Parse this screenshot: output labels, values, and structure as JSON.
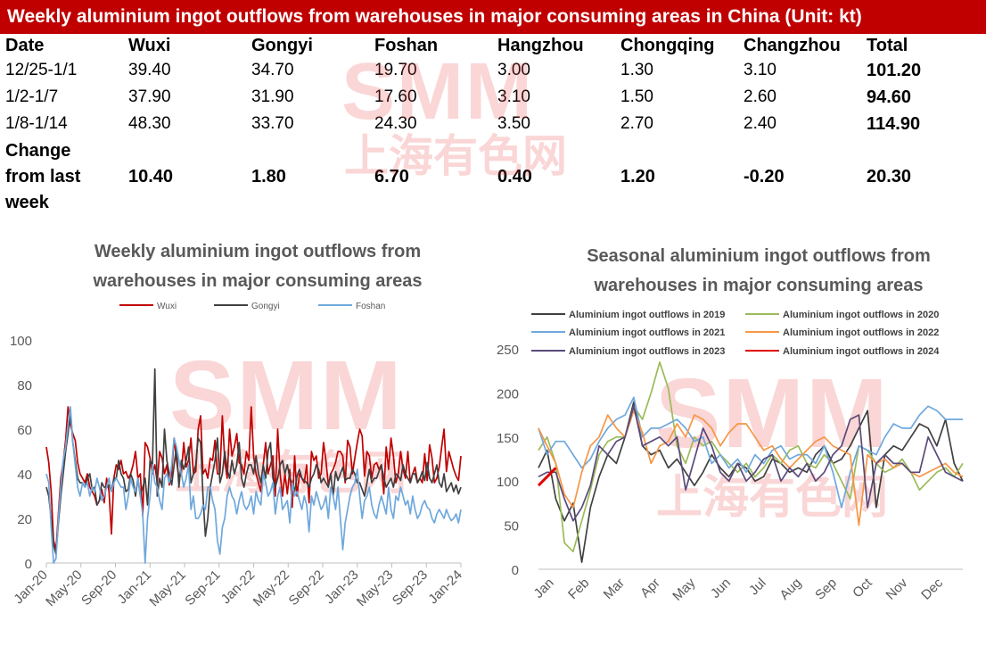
{
  "banner": {
    "title": "Weekly aluminium ingot outflows from warehouses in major consuming areas in China (Unit:  kt)"
  },
  "table": {
    "headers": [
      "Date",
      "Wuxi",
      "Gongyi",
      "Foshan",
      "Hangzhou",
      "Chongqing",
      "Changzhou",
      "Total"
    ],
    "rows": [
      [
        "12/25-1/1",
        "39.40",
        "34.70",
        "19.70",
        "3.00",
        "1.30",
        "3.10",
        "101.20"
      ],
      [
        "1/2-1/7",
        "37.90",
        "31.90",
        "17.60",
        "3.10",
        "1.50",
        "2.60",
        "94.60"
      ],
      [
        "1/8-1/14",
        "48.30",
        "33.70",
        "24.30",
        "3.50",
        "2.70",
        "2.40",
        "114.90"
      ]
    ],
    "change_label": [
      "Change",
      "from last",
      "week"
    ],
    "change": [
      "10.40",
      "1.80",
      "6.70",
      "0.40",
      "1.20",
      "-0.20",
      "20.30"
    ]
  },
  "watermark": {
    "logo": "SMM",
    "chinese": "上海有色网"
  },
  "chart_data": [
    {
      "type": "line",
      "title": [
        "Weekly aluminium ingot outflows from",
        "warehouses in major consuming areas"
      ],
      "x_ticks": [
        "Jan-20",
        "May-20",
        "Sep-20",
        "Jan-21",
        "May-21",
        "Sep-21",
        "Jan-22",
        "May-22",
        "Sep-22",
        "Jan-23",
        "May-23",
        "Sep-23",
        "Jan-24"
      ],
      "ylim": [
        0,
        100
      ],
      "y_ticks": [
        0,
        20,
        40,
        60,
        80,
        100
      ],
      "legend_position": "top",
      "series": [
        {
          "name": "Wuxi",
          "color": "#c00000",
          "values": [
            52,
            45,
            32,
            10,
            6,
            22,
            38,
            45,
            55,
            70,
            62,
            58,
            55,
            45,
            40,
            38,
            36,
            40,
            34,
            32,
            30,
            26,
            28,
            33,
            27,
            38,
            32,
            13,
            38,
            44,
            42,
            46,
            40,
            41,
            38,
            40,
            44,
            50,
            38,
            40,
            21,
            54,
            52,
            47,
            40,
            44,
            36,
            50,
            47,
            40,
            44,
            35,
            40,
            56,
            46,
            38,
            40,
            54,
            43,
            46,
            56,
            40,
            41,
            60,
            66,
            40,
            42,
            38,
            47,
            46,
            55,
            40,
            40,
            66,
            46,
            38,
            60,
            48,
            52,
            58,
            45,
            44,
            40,
            50,
            46,
            70,
            48,
            40,
            36,
            32,
            44,
            54,
            40,
            44,
            48,
            30,
            60,
            40,
            30,
            40,
            31,
            42,
            25,
            48,
            30,
            40,
            38,
            36,
            44,
            27,
            50,
            46,
            48,
            38,
            40,
            54,
            46,
            35,
            40,
            42,
            45,
            50,
            50,
            48,
            36,
            55,
            52,
            40,
            47,
            54,
            60,
            57,
            39,
            50,
            48,
            38,
            44,
            45,
            42,
            44,
            31,
            52,
            42,
            56,
            48,
            36,
            40,
            50,
            42,
            38,
            50,
            36,
            40,
            43,
            36,
            38,
            36,
            49,
            37,
            53,
            47,
            36,
            38,
            43,
            52,
            60,
            41,
            50,
            46,
            42,
            39,
            37,
            48
          ]
        },
        {
          "name": "Gongyi",
          "color": "#404040",
          "values": [
            34,
            30,
            20,
            8,
            4,
            18,
            30,
            40,
            50,
            58,
            68,
            54,
            46,
            38,
            36,
            36,
            34,
            38,
            40,
            33,
            34,
            26,
            28,
            36,
            34,
            34,
            35,
            32,
            38,
            38,
            46,
            40,
            38,
            32,
            33,
            40,
            37,
            30,
            38,
            30,
            34,
            38,
            26,
            46,
            44,
            87,
            30,
            38,
            34,
            60,
            46,
            40,
            35,
            44,
            52,
            34,
            46,
            42,
            46,
            52,
            36,
            40,
            44,
            56,
            54,
            30,
            12,
            20,
            34,
            40,
            46,
            56,
            36,
            40,
            50,
            42,
            38,
            46,
            40,
            44,
            54,
            38,
            34,
            40,
            44,
            44,
            40,
            48,
            40,
            36,
            44,
            38,
            50,
            54,
            38,
            34,
            38,
            44,
            46,
            40,
            44,
            38,
            36,
            32,
            39,
            42,
            38,
            37,
            36,
            34,
            38,
            40,
            44,
            42,
            36,
            38,
            36,
            34,
            40,
            30,
            41,
            37,
            40,
            43,
            37,
            38,
            38,
            42,
            40,
            36,
            36,
            33,
            30,
            36,
            42,
            36,
            38,
            38,
            41,
            44,
            38,
            34,
            36,
            38,
            34,
            40,
            39,
            37,
            44,
            40,
            38,
            36,
            40,
            40,
            36,
            38,
            41,
            37,
            45,
            38,
            36,
            40,
            44,
            36,
            34,
            40,
            32,
            34,
            36,
            32,
            35,
            31,
            34
          ]
        },
        {
          "name": "Foshan",
          "color": "#6fa8dc",
          "values": [
            40,
            36,
            16,
            0,
            2,
            20,
            34,
            46,
            52,
            62,
            70,
            54,
            44,
            34,
            30,
            36,
            34,
            36,
            30,
            34,
            32,
            38,
            34,
            28,
            30,
            34,
            38,
            32,
            36,
            38,
            36,
            34,
            34,
            24,
            30,
            38,
            34,
            32,
            38,
            30,
            22,
            0,
            20,
            30,
            44,
            36,
            34,
            28,
            24,
            38,
            40,
            36,
            44,
            56,
            52,
            46,
            40,
            34,
            38,
            44,
            24,
            30,
            20,
            20,
            22,
            26,
            24,
            34,
            34,
            28,
            24,
            10,
            4,
            16,
            20,
            30,
            34,
            30,
            28,
            22,
            28,
            32,
            26,
            24,
            26,
            30,
            22,
            32,
            28,
            26,
            40,
            36,
            30,
            32,
            36,
            22,
            30,
            34,
            24,
            26,
            28,
            18,
            36,
            30,
            32,
            28,
            24,
            30,
            26,
            14,
            30,
            26,
            32,
            28,
            24,
            26,
            30,
            20,
            34,
            30,
            24,
            34,
            20,
            6,
            18,
            24,
            30,
            34,
            36,
            42,
            30,
            20,
            28,
            30,
            34,
            26,
            22,
            20,
            26,
            30,
            26,
            22,
            34,
            24,
            20,
            30,
            28,
            34,
            30,
            26,
            28,
            22,
            30,
            24,
            20,
            22,
            26,
            28,
            25,
            24,
            20,
            18,
            22,
            24,
            22,
            20,
            24,
            21,
            19,
            20,
            22,
            18,
            24
          ]
        }
      ]
    },
    {
      "type": "line",
      "title": [
        "Seasonal aluminium ingot outflows from",
        "warehouses in major consuming areas"
      ],
      "x_ticks": [
        "Jan",
        "Feb",
        "Mar",
        "Apr",
        "May",
        "Jun",
        "Jul",
        "Aug",
        "Sep",
        "Oct",
        "Nov",
        "Dec"
      ],
      "ylim": [
        0,
        250
      ],
      "y_ticks": [
        0,
        50,
        100,
        150,
        200,
        250
      ],
      "legend_position": "top",
      "series": [
        {
          "name": "Aluminium ingot outflows in 2019",
          "color": "#404040",
          "values": [
            115,
            135,
            80,
            55,
            75,
            8,
            70,
            105,
            130,
            120,
            150,
            190,
            140,
            130,
            135,
            115,
            125,
            110,
            95,
            110,
            130,
            115,
            105,
            120,
            115,
            100,
            105,
            125,
            120,
            110,
            115,
            110,
            130,
            140,
            120,
            125,
            140,
            160,
            180,
            70,
            130,
            140,
            135,
            150,
            165,
            160,
            140,
            170,
            120,
            100
          ]
        },
        {
          "name": "Aluminium ingot outflows in 2020",
          "color": "#9bbb59",
          "values": [
            135,
            150,
            120,
            30,
            20,
            55,
            90,
            130,
            145,
            150,
            150,
            185,
            170,
            200,
            235,
            205,
            140,
            120,
            150,
            140,
            145,
            130,
            120,
            110,
            120,
            105,
            115,
            130,
            120,
            135,
            140,
            120,
            115,
            130,
            120,
            100,
            80,
            140,
            135,
            120,
            110,
            115,
            125,
            110,
            90,
            100,
            110,
            115,
            105,
            120
          ]
        },
        {
          "name": "Aluminium ingot outflows in 2021",
          "color": "#6fa8dc",
          "values": [
            160,
            130,
            145,
            145,
            130,
            115,
            125,
            145,
            160,
            170,
            175,
            195,
            150,
            160,
            160,
            165,
            170,
            160,
            145,
            150,
            120,
            130,
            115,
            125,
            110,
            130,
            120,
            135,
            140,
            125,
            130,
            130,
            120,
            140,
            110,
            70,
            110,
            140,
            135,
            130,
            150,
            165,
            160,
            160,
            175,
            185,
            180,
            170,
            170,
            170
          ]
        },
        {
          "name": "Aluminium ingot outflows in 2022",
          "color": "#f79646",
          "values": [
            160,
            140,
            120,
            85,
            70,
            110,
            140,
            150,
            175,
            160,
            150,
            180,
            155,
            120,
            140,
            145,
            165,
            150,
            175,
            170,
            160,
            140,
            155,
            165,
            165,
            150,
            135,
            140,
            125,
            115,
            125,
            135,
            145,
            150,
            140,
            135,
            130,
            50,
            130,
            120,
            125,
            115,
            120,
            110,
            105,
            110,
            115,
            120,
            110,
            105
          ]
        },
        {
          "name": "Aluminium ingot outflows in 2023",
          "color": "#5b4a7a",
          "values": [
            105,
            110,
            110,
            80,
            55,
            70,
            95,
            140,
            130,
            145,
            150,
            185,
            140,
            145,
            150,
            140,
            150,
            90,
            125,
            160,
            140,
            110,
            100,
            120,
            100,
            110,
            125,
            130,
            100,
            115,
            105,
            120,
            100,
            110,
            130,
            140,
            170,
            175,
            70,
            120,
            130,
            120,
            120,
            110,
            110,
            150,
            130,
            110,
            105,
            100
          ]
        },
        {
          "name": "Aluminium ingot outflows in 2024",
          "color": "#e00000",
          "values": [
            95,
            105,
            115
          ]
        }
      ]
    }
  ]
}
